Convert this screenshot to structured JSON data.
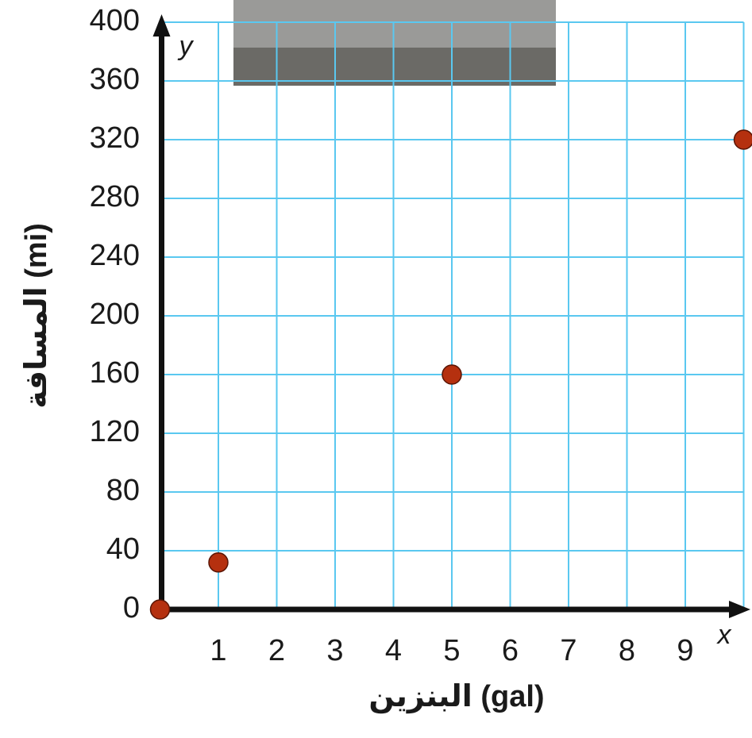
{
  "chart_data": {
    "type": "scatter",
    "x_label": "البنزين (gal)",
    "y_label": "المسافة (mi)",
    "x_axis_letter": "x",
    "y_axis_letter": "y",
    "x": [
      0,
      1,
      5,
      10
    ],
    "values": [
      0,
      32,
      160,
      320
    ],
    "color": "#b5300f",
    "xlim": [
      0,
      10
    ],
    "ylim": [
      0,
      400
    ],
    "xticks": [
      1,
      2,
      3,
      4,
      5,
      6,
      7,
      8,
      9
    ],
    "yticks": [
      0,
      40,
      80,
      120,
      160,
      200,
      240,
      280,
      320,
      360,
      400
    ],
    "grid": true,
    "grid_color": "#5ac8f0"
  }
}
